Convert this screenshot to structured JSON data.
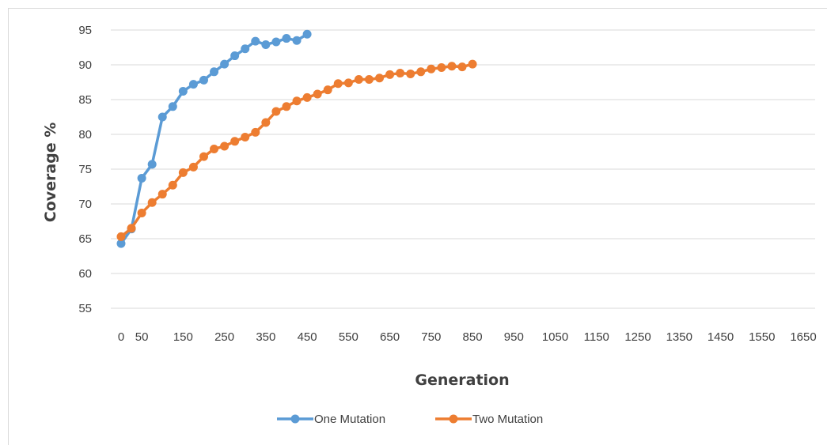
{
  "chart_data": {
    "type": "line",
    "title": "",
    "xlabel": "Generation",
    "ylabel": "Coverage %",
    "ylim": [
      55,
      95
    ],
    "xlim": [
      0,
      1650
    ],
    "yticks": [
      55,
      60,
      65,
      70,
      75,
      80,
      85,
      90,
      95
    ],
    "xticks": [
      0,
      50,
      150,
      250,
      350,
      450,
      550,
      650,
      750,
      850,
      950,
      1050,
      1150,
      1250,
      1350,
      1450,
      1550,
      1650
    ],
    "grid": true,
    "legend": "bottom",
    "series": [
      {
        "name": "One Mutation",
        "color": "#5b9bd5",
        "x": [
          0,
          25,
          50,
          75,
          100,
          125,
          150,
          175,
          200,
          225,
          250,
          275,
          300,
          325,
          350,
          375,
          400,
          425,
          450
        ],
        "y": [
          64.3,
          66.4,
          73.7,
          75.7,
          82.5,
          84.0,
          86.2,
          87.2,
          87.8,
          89.0,
          90.1,
          91.3,
          92.3,
          93.4,
          92.9,
          93.3,
          93.8,
          93.5,
          94.4
        ]
      },
      {
        "name": "Two Mutation",
        "color": "#ed7d31",
        "x": [
          0,
          25,
          50,
          75,
          100,
          125,
          150,
          175,
          200,
          225,
          250,
          275,
          300,
          325,
          350,
          375,
          400,
          425,
          450,
          475,
          500,
          525,
          550,
          575,
          600,
          625,
          650,
          675,
          700,
          725,
          750,
          775,
          800,
          825,
          850
        ],
        "y": [
          65.3,
          66.5,
          68.7,
          70.2,
          71.4,
          72.7,
          74.5,
          75.3,
          76.8,
          77.9,
          78.3,
          79.0,
          79.6,
          80.3,
          81.7,
          83.3,
          84.0,
          84.8,
          85.3,
          85.8,
          86.4,
          87.3,
          87.4,
          87.9,
          87.9,
          88.1,
          88.6,
          88.8,
          88.7,
          89.0,
          89.4,
          89.6,
          89.8,
          89.7,
          90.1
        ]
      }
    ]
  }
}
